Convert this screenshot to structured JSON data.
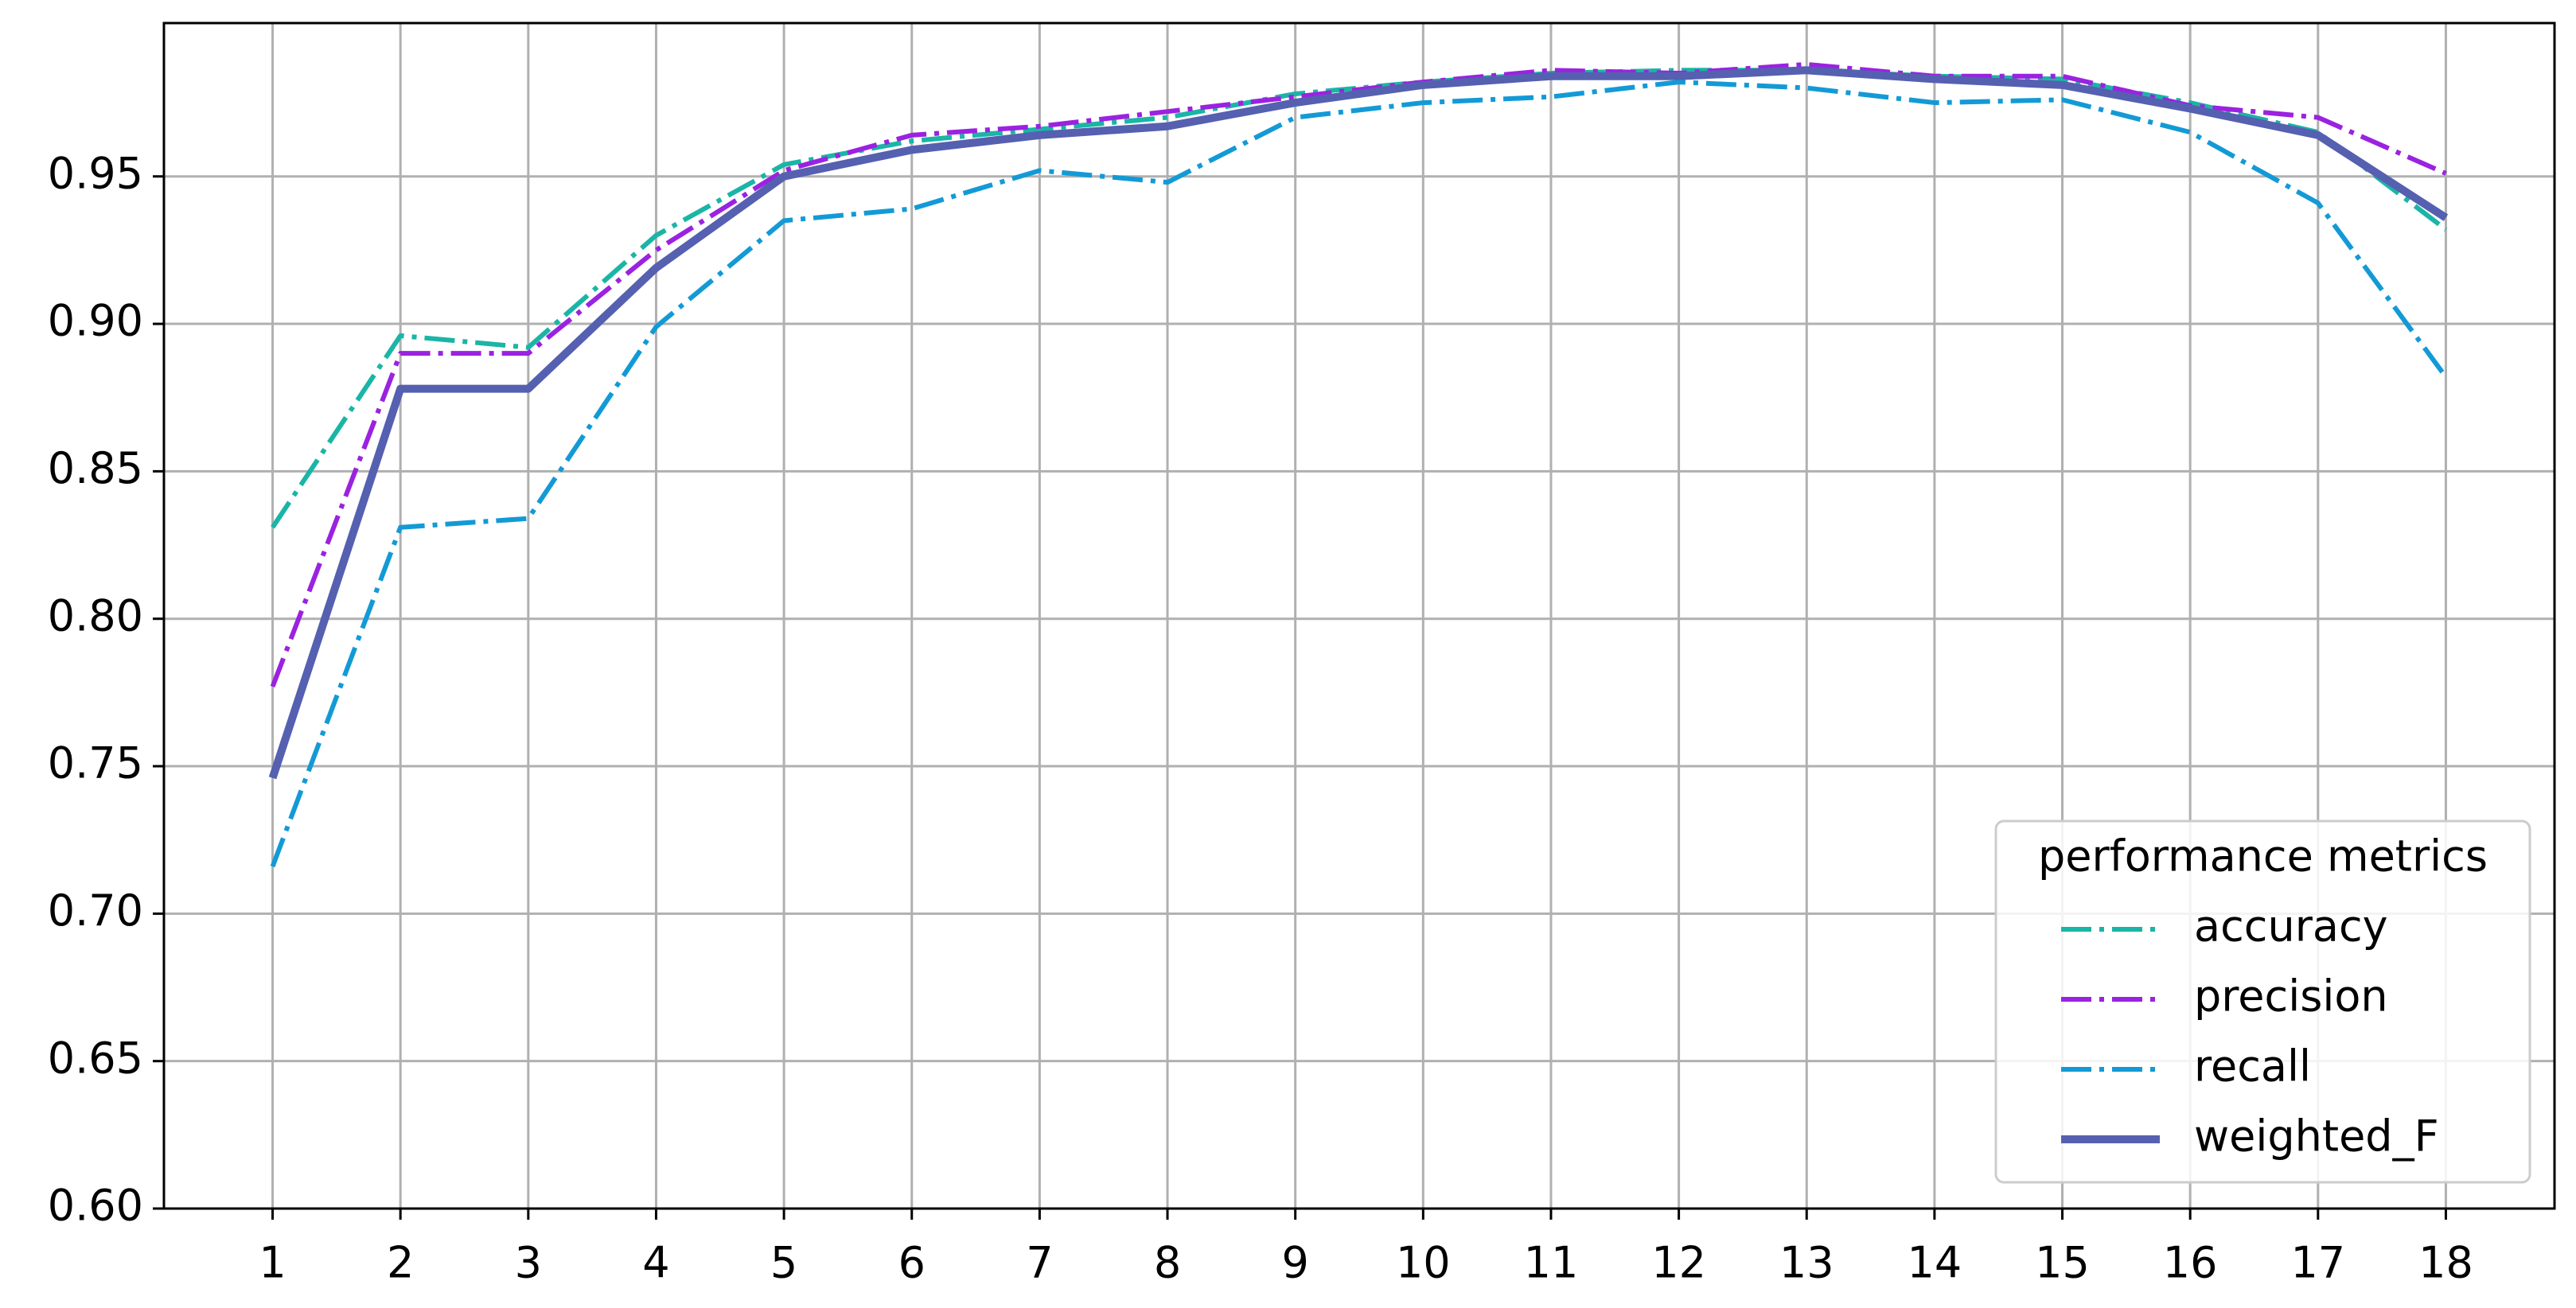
{
  "chart_data": {
    "type": "line",
    "x": [
      1,
      2,
      3,
      4,
      5,
      6,
      7,
      8,
      9,
      10,
      11,
      12,
      13,
      14,
      15,
      16,
      17,
      18
    ],
    "series": [
      {
        "name": "accuracy",
        "color": "#1ab5a6",
        "linestyle": "dashdot",
        "values": [
          0.831,
          0.896,
          0.892,
          0.93,
          0.954,
          0.962,
          0.966,
          0.97,
          0.978,
          0.982,
          0.985,
          0.986,
          0.986,
          0.984,
          0.983,
          0.975,
          0.965,
          0.932
        ]
      },
      {
        "name": "precision",
        "color": "#9b22e0",
        "linestyle": "dashdot",
        "values": [
          0.777,
          0.89,
          0.89,
          0.925,
          0.952,
          0.964,
          0.967,
          0.972,
          0.977,
          0.982,
          0.986,
          0.985,
          0.988,
          0.984,
          0.984,
          0.974,
          0.97,
          0.951
        ]
      },
      {
        "name": "recall",
        "color": "#139ad6",
        "linestyle": "dashdot",
        "values": [
          0.716,
          0.831,
          0.834,
          0.899,
          0.935,
          0.939,
          0.952,
          0.948,
          0.97,
          0.975,
          0.977,
          0.982,
          0.98,
          0.975,
          0.976,
          0.965,
          0.941,
          0.882
        ]
      },
      {
        "name": "weighted_F",
        "color": "#5560b0",
        "linestyle": "solid",
        "values": [
          0.746,
          0.878,
          0.878,
          0.919,
          0.95,
          0.959,
          0.964,
          0.967,
          0.975,
          0.981,
          0.984,
          0.984,
          0.986,
          0.983,
          0.981,
          0.973,
          0.964,
          0.936
        ]
      }
    ],
    "xlim": [
      0.15,
      18.85
    ],
    "xticks": [
      1,
      2,
      3,
      4,
      5,
      6,
      7,
      8,
      9,
      10,
      11,
      12,
      13,
      14,
      15,
      16,
      17,
      18
    ],
    "ylim": [
      0.6,
      1.002
    ],
    "yticks": [
      {
        "value": 0.6,
        "label": "0.60"
      },
      0.65,
      {
        "value": 0.7,
        "label": "0.70"
      },
      0.75,
      {
        "value": 0.8,
        "label": "0.80"
      },
      0.85,
      {
        "value": 0.9,
        "label": "0.90"
      },
      0.95
    ],
    "grid": true,
    "legend_title": "performance metrics",
    "legend_position": "lower right"
  }
}
